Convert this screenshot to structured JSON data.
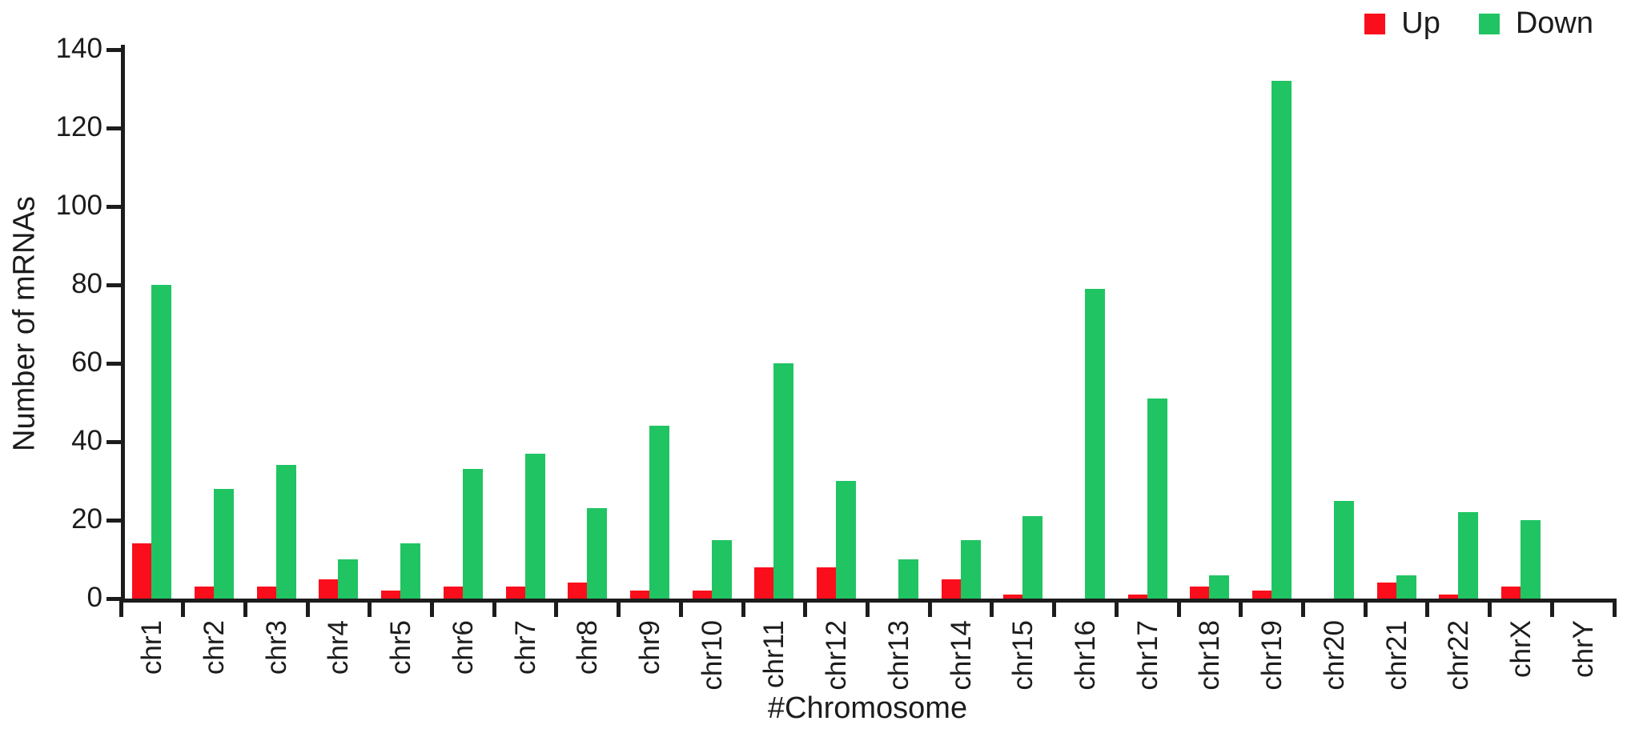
{
  "chart_data": {
    "type": "bar",
    "title": "",
    "xlabel": "#Chromosome",
    "ylabel": "Number of mRNAs",
    "categories": [
      "chr1",
      "chr2",
      "chr3",
      "chr4",
      "chr5",
      "chr6",
      "chr7",
      "chr8",
      "chr9",
      "chr10",
      "chr11",
      "chr12",
      "chr13",
      "chr14",
      "chr15",
      "chr16",
      "chr17",
      "chr18",
      "chr19",
      "chr20",
      "chr21",
      "chr22",
      "chrX",
      "chrY"
    ],
    "series": [
      {
        "name": "Up",
        "color": "#fa0e1c",
        "values": [
          14,
          3,
          3,
          5,
          2,
          3,
          3,
          4,
          2,
          2,
          8,
          8,
          0,
          5,
          1,
          0,
          1,
          3,
          2,
          0,
          4,
          1,
          3,
          0
        ]
      },
      {
        "name": "Down",
        "color": "#20c463",
        "values": [
          80,
          28,
          34,
          10,
          14,
          33,
          37,
          23,
          44,
          15,
          60,
          30,
          10,
          15,
          21,
          79,
          51,
          6,
          132,
          25,
          6,
          22,
          20,
          0
        ]
      }
    ],
    "ylim": [
      0,
      140
    ],
    "yticks": [
      0,
      20,
      40,
      60,
      80,
      100,
      120,
      140
    ],
    "grid": false,
    "legend_position": "top-right",
    "axis_color": "#1c1c1c"
  }
}
